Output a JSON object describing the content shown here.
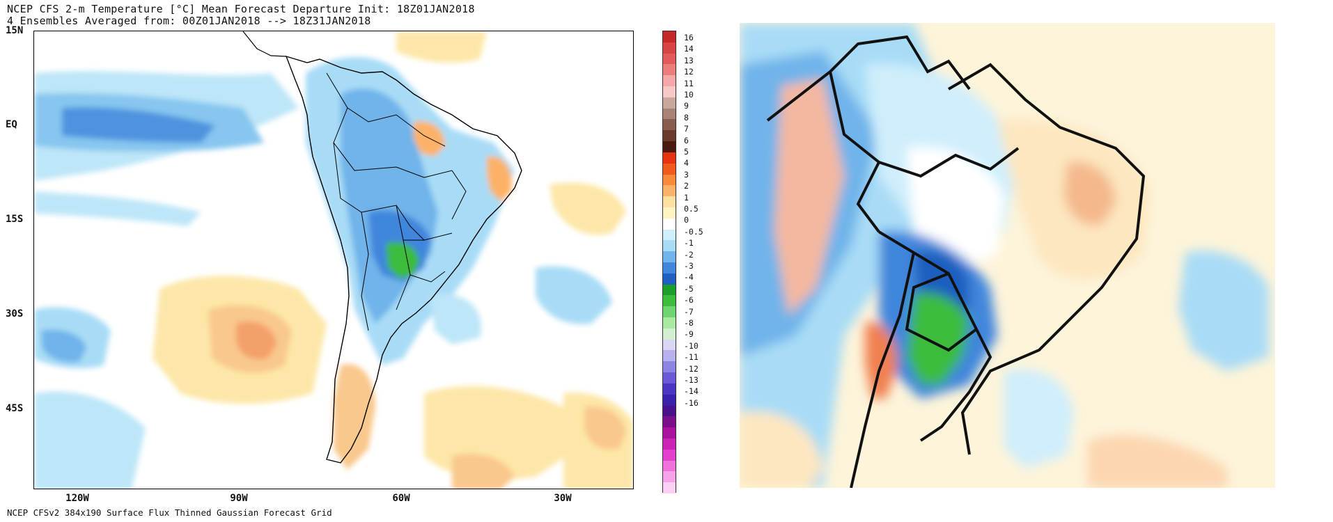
{
  "header": {
    "line1": "NCEP CFS 2-m Temperature [°C] Mean Forecast Departure Init: 18Z01JAN2018",
    "line2": "4 Ensembles Averaged from: 00Z01JAN2018 --> 18Z31JAN2018"
  },
  "footer": "NCEP CFSv2 384x190 Surface Flux Thinned Gaussian Forecast Grid",
  "map": {
    "lat_ticks": [
      "15N",
      "EQ",
      "15S",
      "30S",
      "45S"
    ],
    "lon_ticks": [
      "120W",
      "90W",
      "60W",
      "30W"
    ],
    "lat_range": [
      15,
      -58
    ],
    "lon_range": [
      -128,
      -17
    ]
  },
  "colorbar": {
    "labels": [
      "16",
      "14",
      "13",
      "12",
      "11",
      "10",
      "9",
      "8",
      "7",
      "6",
      "5",
      "4",
      "3",
      "2",
      "1",
      "0.5",
      "0",
      "-0.5",
      "-1",
      "-2",
      "-3",
      "-4",
      "-5",
      "-6",
      "-7",
      "-8",
      "-9",
      "-10",
      "-11",
      "-12",
      "-13",
      "-14",
      "-16"
    ],
    "colors": [
      "#c62828",
      "#d84343",
      "#e35a5a",
      "#ec7d7d",
      "#f4a7a7",
      "#f7c8c8",
      "#c9a89c",
      "#a88274",
      "#8a5c4e",
      "#6b3a2c",
      "#4a1a10",
      "#e53312",
      "#f05a1a",
      "#f88a3a",
      "#fcb266",
      "#fde0a0",
      "#fff5c2",
      "#ffffff",
      "#cfeefc",
      "#a8dcf6",
      "#6fb4ea",
      "#3f86dc",
      "#1f5fbf",
      "#1a9e2a",
      "#3dbb3d",
      "#6fd46f",
      "#a8e8a0",
      "#d0f0d0",
      "#d8d8f4",
      "#b6b0ee",
      "#8c84e2",
      "#6a5ad6",
      "#4a36c4",
      "#3a1fa8",
      "#4a0f8a",
      "#7a0e8a",
      "#a8129e",
      "#cc22b8",
      "#e23fcc",
      "#f070dc",
      "#f7a3ea",
      "#fbd0f4"
    ]
  }
}
